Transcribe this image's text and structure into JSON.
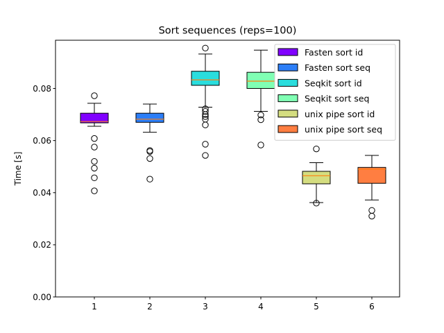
{
  "chart_data": {
    "type": "boxplot",
    "title": "Sort sequences (reps=100)",
    "xlabel": "",
    "ylabel": "Time [s]",
    "ylim": [
      0.0,
      0.0985
    ],
    "xlim": [
      0.3,
      6.5
    ],
    "yticks": [
      0.0,
      0.02,
      0.04,
      0.06,
      0.08
    ],
    "ytick_labels": [
      "0.00",
      "0.02",
      "0.04",
      "0.06",
      "0.08"
    ],
    "categories": [
      "1",
      "2",
      "3",
      "4",
      "5",
      "6"
    ],
    "grid": false,
    "legend_position": "top-right",
    "median_color": "#ff7f0e",
    "series": [
      {
        "name": "Fasten sort id",
        "x": 1,
        "color": "#8000ff",
        "whisker_low": 0.0655,
        "q1": 0.0668,
        "median": 0.0673,
        "q3": 0.0705,
        "whisker_high": 0.0743,
        "fliers": [
          0.0772,
          0.0608,
          0.0575,
          0.052,
          0.0494,
          0.0457,
          0.0407
        ]
      },
      {
        "name": "Fasten sort seq",
        "x": 2,
        "color": "#2c7ef7",
        "whisker_low": 0.0632,
        "q1": 0.067,
        "median": 0.0682,
        "q3": 0.0705,
        "whisker_high": 0.074,
        "fliers": [
          0.0562,
          0.0558,
          0.0531,
          0.0452
        ]
      },
      {
        "name": "Seqkit sort id",
        "x": 3,
        "color": "#2adddd",
        "whisker_low": 0.0728,
        "q1": 0.0812,
        "median": 0.0833,
        "q3": 0.0866,
        "whisker_high": 0.0932,
        "fliers": [
          0.0955,
          0.0722,
          0.0712,
          0.07,
          0.0692,
          0.0682,
          0.066,
          0.0586,
          0.0543
        ]
      },
      {
        "name": "Seqkit sort seq",
        "x": 4,
        "color": "#80ffb4",
        "whisker_low": 0.0712,
        "q1": 0.08,
        "median": 0.0828,
        "q3": 0.0862,
        "whisker_high": 0.0947,
        "fliers": [
          0.0698,
          0.068,
          0.0583
        ]
      },
      {
        "name": "unix pipe sort id",
        "x": 5,
        "color": "#d4dd80",
        "whisker_low": 0.0362,
        "q1": 0.0434,
        "median": 0.0465,
        "q3": 0.0482,
        "whisker_high": 0.0515,
        "fliers": [
          0.0568,
          0.036
        ]
      },
      {
        "name": "unix pipe sort seq",
        "x": 6,
        "color": "#ff7e41",
        "whisker_low": 0.0372,
        "q1": 0.0436,
        "median": 0.049,
        "q3": 0.0497,
        "whisker_high": 0.0543,
        "fliers": [
          0.0332,
          0.031
        ]
      }
    ]
  }
}
